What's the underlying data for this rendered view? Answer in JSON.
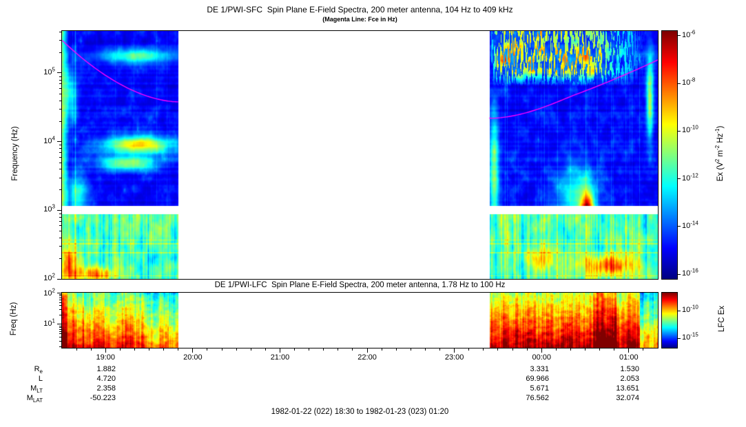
{
  "colors": {
    "background": "#ffffff",
    "frame": "#000000",
    "fce_line": "#ff00ff",
    "text": "#000000"
  },
  "chart_data": [
    {
      "type": "heatmap",
      "instrument": "DE 1/PWI-SFC",
      "title": "DE 1/PWI-SFC  Spin Plane E-Field Spectra, 200 meter antenna, 104 Hz to 409 kHz",
      "subtitle": "(Magenta Line: Fce in Hz)",
      "ylabel": "Frequency (Hz)",
      "yscale": "log",
      "ylim_hz": [
        100,
        409000
      ],
      "ytick_values": [
        100,
        1000,
        10000,
        100000
      ],
      "ytick_labels": [
        "10^2",
        "10^3",
        "10^4",
        "10^5"
      ],
      "x_start_label": "18:30",
      "x_end_label": "01:20",
      "x_total_minutes": 410,
      "xtick_minutes": [
        30,
        90,
        150,
        210,
        270,
        330,
        390
      ],
      "xtick_labels": [
        "19:00",
        "20:00",
        "21:00",
        "22:00",
        "23:00",
        "00:00",
        "01:00"
      ],
      "x_minor_tick_minutes": 10,
      "data_segments_minutes": [
        [
          0,
          80
        ],
        [
          294,
          410
        ]
      ],
      "data_gap_minutes": [
        80,
        294
      ],
      "receiver_gap_band_hz": [
        890,
        1175
      ],
      "colorbar": {
        "label": "Ex (V^2 m^-2 Hz^-1)",
        "scale": "log",
        "range_exp": [
          -5.8,
          -16.2
        ],
        "tick_exps": [
          -6,
          -8,
          -10,
          -12,
          -14,
          -16
        ],
        "tick_labels": [
          "10^-6",
          "10^-8",
          "10^-10",
          "10^-12",
          "10^-14",
          "10^-16"
        ]
      },
      "fce_line": {
        "name": "Fce",
        "color": "#ff00ff",
        "left_segment_hz": [
          300000,
          38000
        ],
        "right_segment_hz": [
          22000,
          155000
        ]
      }
    },
    {
      "type": "heatmap",
      "instrument": "DE 1/PWI-LFC",
      "title": "DE 1/PWI-LFC  Spin Plane E-Field Spectra, 200 meter antenna, 1.78 Hz to 100 Hz",
      "ylabel": "Freq (Hz)",
      "yscale": "log",
      "ylim_hz": [
        1.78,
        100
      ],
      "ytick_values": [
        10,
        100
      ],
      "ytick_labels": [
        "10^1",
        "10^2"
      ],
      "data_segments_minutes": [
        [
          0,
          80
        ],
        [
          294,
          410
        ]
      ],
      "colorbar": {
        "label": "LFC Ex",
        "scale": "log",
        "range_exp": [
          -6.75,
          -16.75
        ],
        "tick_exps": [
          -10,
          -15
        ],
        "tick_labels": [
          "10^-10",
          "10^-15"
        ]
      }
    }
  ],
  "ephemeris": {
    "row_labels": [
      "R_e",
      "L",
      "M_LT",
      "M_LAT"
    ],
    "column_times": [
      "19:00",
      "00:00",
      "01:00"
    ],
    "values": [
      [
        "1.882",
        "3.331",
        "1.530"
      ],
      [
        "4.720",
        "69.966",
        "2.053"
      ],
      [
        "2.358",
        "5.671",
        "13.651"
      ],
      [
        "-50.223",
        "76.562",
        "32.074"
      ]
    ]
  },
  "caption": "1982-01-22 (022) 18:30 to 1982-01-23 (023) 01:20"
}
